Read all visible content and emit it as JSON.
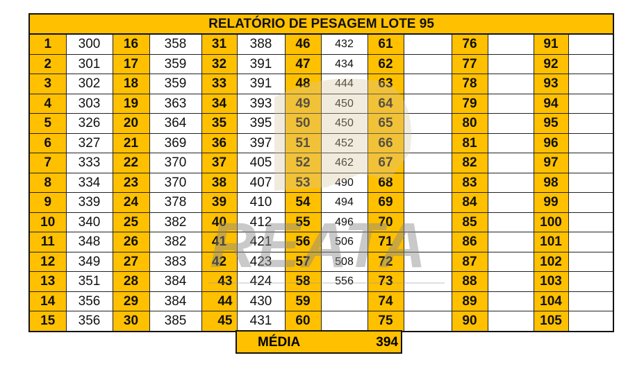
{
  "title": "RELATÓRIO DE PESAGEM LOTE  95",
  "colors": {
    "accent": "#FFC000",
    "border": "#111111"
  },
  "logo": {
    "text": "REATA"
  },
  "rows": [
    [
      [
        "1",
        "300"
      ],
      [
        "16",
        "358"
      ],
      [
        "31",
        "388"
      ],
      [
        "46",
        "432"
      ],
      [
        "61",
        ""
      ],
      [
        "76",
        ""
      ],
      [
        "91",
        ""
      ]
    ],
    [
      [
        "2",
        "301"
      ],
      [
        "17",
        "359"
      ],
      [
        "32",
        "391"
      ],
      [
        "47",
        "434"
      ],
      [
        "62",
        ""
      ],
      [
        "77",
        ""
      ],
      [
        "92",
        ""
      ]
    ],
    [
      [
        "3",
        "302"
      ],
      [
        "18",
        "359"
      ],
      [
        "33",
        "391"
      ],
      [
        "48",
        "444"
      ],
      [
        "63",
        ""
      ],
      [
        "78",
        ""
      ],
      [
        "93",
        ""
      ]
    ],
    [
      [
        "4",
        "303"
      ],
      [
        "19",
        "363"
      ],
      [
        "34",
        "393"
      ],
      [
        "49",
        "450"
      ],
      [
        "64",
        ""
      ],
      [
        "79",
        ""
      ],
      [
        "94",
        ""
      ]
    ],
    [
      [
        "5",
        "326"
      ],
      [
        "20",
        "364"
      ],
      [
        "35",
        "395"
      ],
      [
        "50",
        "450"
      ],
      [
        "65",
        ""
      ],
      [
        "80",
        ""
      ],
      [
        "95",
        ""
      ]
    ],
    [
      [
        "6",
        "327"
      ],
      [
        "21",
        "369"
      ],
      [
        "36",
        "397"
      ],
      [
        "51",
        "452"
      ],
      [
        "66",
        ""
      ],
      [
        "81",
        ""
      ],
      [
        "96",
        ""
      ]
    ],
    [
      [
        "7",
        "333"
      ],
      [
        "22",
        "370"
      ],
      [
        "37",
        "405"
      ],
      [
        "52",
        "462"
      ],
      [
        "67",
        ""
      ],
      [
        "82",
        ""
      ],
      [
        "97",
        ""
      ]
    ],
    [
      [
        "8",
        "334"
      ],
      [
        "23",
        "370"
      ],
      [
        "38",
        "407"
      ],
      [
        "53",
        "490"
      ],
      [
        "68",
        ""
      ],
      [
        "83",
        ""
      ],
      [
        "98",
        ""
      ]
    ],
    [
      [
        "9",
        "339"
      ],
      [
        "24",
        "378"
      ],
      [
        "39",
        "410"
      ],
      [
        "54",
        "494"
      ],
      [
        "69",
        ""
      ],
      [
        "84",
        ""
      ],
      [
        "99",
        ""
      ]
    ],
    [
      [
        "10",
        "340"
      ],
      [
        "25",
        "382"
      ],
      [
        "40",
        "412"
      ],
      [
        "55",
        "496"
      ],
      [
        "70",
        ""
      ],
      [
        "85",
        ""
      ],
      [
        "100",
        ""
      ]
    ],
    [
      [
        "11",
        "348"
      ],
      [
        "26",
        "382"
      ],
      [
        "41",
        "421"
      ],
      [
        "56",
        "506"
      ],
      [
        "71",
        ""
      ],
      [
        "86",
        ""
      ],
      [
        "101",
        ""
      ]
    ],
    [
      [
        "12",
        "349"
      ],
      [
        "27",
        "383"
      ],
      [
        "42",
        "423"
      ],
      [
        "57",
        "508"
      ],
      [
        "72",
        ""
      ],
      [
        "87",
        ""
      ],
      [
        "102",
        ""
      ]
    ],
    [
      [
        "13",
        "351"
      ],
      [
        "28",
        "384"
      ],
      [
        "43",
        "424"
      ],
      [
        "58",
        "556"
      ],
      [
        "73",
        ""
      ],
      [
        "88",
        ""
      ],
      [
        "103",
        ""
      ]
    ],
    [
      [
        "14",
        "356"
      ],
      [
        "29",
        "384"
      ],
      [
        "44",
        "430"
      ],
      [
        "59",
        ""
      ],
      [
        "74",
        ""
      ],
      [
        "89",
        ""
      ],
      [
        "104",
        ""
      ]
    ],
    [
      [
        "15",
        "356"
      ],
      [
        "30",
        "385"
      ],
      [
        "45",
        "431"
      ],
      [
        "60",
        ""
      ],
      [
        "75",
        ""
      ],
      [
        "90",
        ""
      ],
      [
        "105",
        ""
      ]
    ]
  ],
  "summary": {
    "label": "MÉDIA",
    "value": "394"
  }
}
